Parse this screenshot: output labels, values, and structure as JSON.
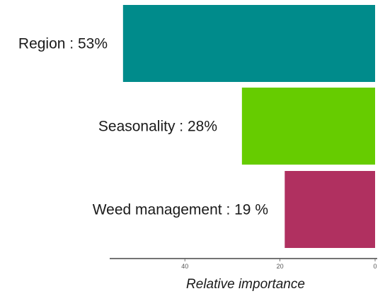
{
  "chart_data": {
    "type": "bar",
    "orientation": "horizontal",
    "x_direction": "reversed",
    "categories": [
      "Region : 53%",
      "Seasonality : 28%",
      "Weed management : 19 %"
    ],
    "values": [
      53,
      28,
      19
    ],
    "colors": [
      "#008b8b",
      "#66cc00",
      "#b03060"
    ],
    "xlabel": "Relative importance",
    "xticks": [
      40,
      20,
      0
    ],
    "xlim": [
      0,
      56
    ],
    "grid": false,
    "legend": "none"
  }
}
